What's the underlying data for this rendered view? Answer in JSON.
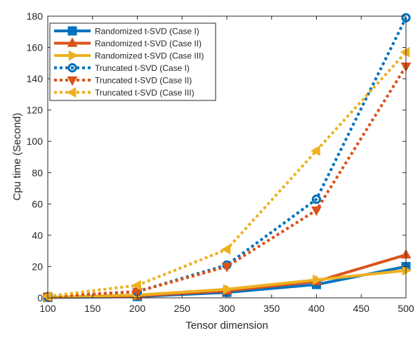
{
  "chart_data": {
    "type": "line",
    "title": "",
    "xlabel": "Tensor dimension",
    "ylabel": "Cpu time (Second)",
    "xlim": [
      100,
      500
    ],
    "ylim": [
      0,
      180
    ],
    "xticks": [
      100,
      150,
      200,
      250,
      300,
      350,
      400,
      450,
      500
    ],
    "yticks": [
      0,
      20,
      40,
      60,
      80,
      100,
      120,
      140,
      160,
      180
    ],
    "x": [
      100,
      200,
      300,
      400,
      500
    ],
    "grid": false,
    "legend_position": "top-left",
    "series": [
      {
        "name": "Randomized t-SVD (Case I)",
        "values": [
          0.2,
          0.8,
          3.5,
          8.5,
          20
        ],
        "color": "#0072BD",
        "line": "solid",
        "marker": "square"
      },
      {
        "name": "Randomized t-SVD (Case II)",
        "values": [
          0.3,
          1.2,
          4.5,
          10.5,
          27.5
        ],
        "color": "#D95319",
        "line": "solid",
        "marker": "triangle-up"
      },
      {
        "name": "Randomized t-SVD (Case III)",
        "values": [
          0.4,
          1.8,
          5.5,
          11.5,
          17.5
        ],
        "color": "#EDB120",
        "line": "solid",
        "marker": "triangle-right"
      },
      {
        "name": "Truncated t-SVD (Case I)",
        "values": [
          0.8,
          4,
          21,
          63,
          179
        ],
        "color": "#0072BD",
        "line": "dotted",
        "marker": "circle"
      },
      {
        "name": "Truncated t-SVD (Case II)",
        "values": [
          0.8,
          4,
          20,
          56,
          148
        ],
        "color": "#D95319",
        "line": "dotted",
        "marker": "triangle-down"
      },
      {
        "name": "Truncated t-SVD (Case III)",
        "values": [
          1,
          8,
          31,
          94,
          157
        ],
        "color": "#EDB120",
        "line": "dotted",
        "marker": "triangle-left"
      }
    ]
  }
}
